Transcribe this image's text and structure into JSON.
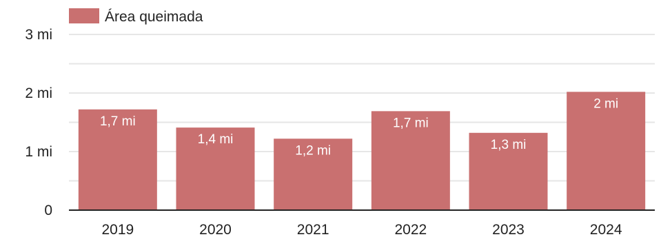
{
  "chart_data": {
    "type": "bar",
    "categories": [
      "2019",
      "2020",
      "2021",
      "2022",
      "2023",
      "2024"
    ],
    "series": [
      {
        "name": "Área queimada",
        "values": [
          1.72,
          1.41,
          1.22,
          1.69,
          1.32,
          2.02
        ],
        "labels": [
          "1,7 mi",
          "1,4 mi",
          "1,2 mi",
          "1,7 mi",
          "1,3 mi",
          "2 mi"
        ],
        "color": "#c97070"
      }
    ],
    "yticks": [
      {
        "value": 0,
        "label": "0"
      },
      {
        "value": 1,
        "label": "1 mi"
      },
      {
        "value": 2,
        "label": "2 mi"
      },
      {
        "value": 3,
        "label": "3 mi"
      }
    ],
    "ylim": [
      0,
      3
    ],
    "minor_gridlines": [
      0.5,
      1.5,
      2.5
    ],
    "grid": true,
    "legend_position": "top-left",
    "title": "",
    "xlabel": "",
    "ylabel": "",
    "colors": {
      "gridline": "#e6e6e6",
      "axis": "#222222",
      "text": "#222222",
      "bar_label": "#ffffff"
    }
  }
}
